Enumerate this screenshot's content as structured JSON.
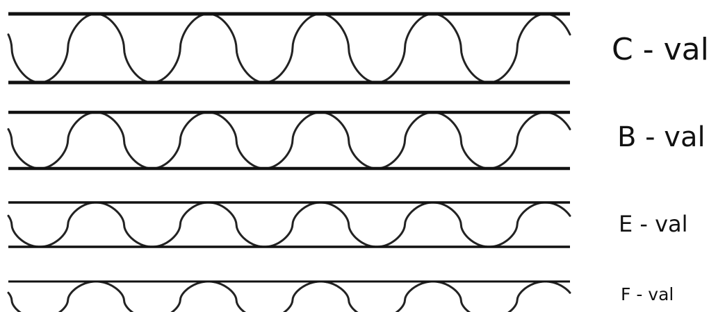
{
  "colors": {
    "stroke": "#111111",
    "wave": "#222222",
    "background": "#ffffff"
  },
  "flutes": [
    {
      "label": "C - val",
      "wave_count": 5
    },
    {
      "label": "B - val",
      "wave_count": 5
    },
    {
      "label": "E - val",
      "wave_count": 5
    },
    {
      "label": "F - val",
      "wave_count": 5
    }
  ]
}
